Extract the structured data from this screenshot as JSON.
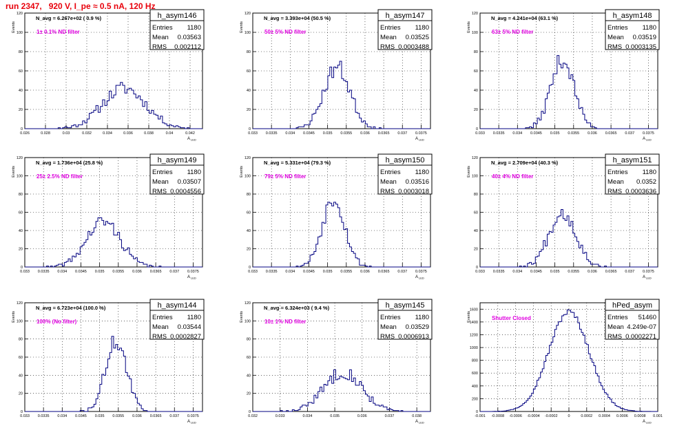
{
  "page_title": "run 2347,   920 V, I_pe ≈ 0.5 nA, 120 Hz",
  "colors": {
    "title": "#e8000b",
    "note": "#e000e0",
    "hist": "#000080",
    "frame": "#000000"
  },
  "axis_labels": {
    "y": "Events",
    "x_main": "A",
    "x_sub": "LED"
  },
  "stats_labels": {
    "entries": "Entries",
    "mean": "Mean",
    "rms": "RMS"
  },
  "chart_data": [
    {
      "type": "bar",
      "name": "h_asym146",
      "navg": "N_avg = 6.267e+02 ( 0.9 %)",
      "note": "1± 0.1% ND filter",
      "entries": "1180",
      "mean": "0.03563",
      "rms": "0.002112",
      "xlim": [
        0.026,
        0.0432
      ],
      "ylim": [
        0,
        120
      ],
      "xticks": [
        "0.026",
        "0.028",
        "0.03",
        "0.032",
        "0.034",
        "0.036",
        "0.038",
        "0.04",
        "0.042"
      ],
      "yticks": [
        "0",
        "20",
        "40",
        "60",
        "80",
        "100",
        "120"
      ],
      "center": 0.0356,
      "sigma": 0.0021,
      "peak": 42,
      "nbins": 80,
      "seed": 11
    },
    {
      "type": "bar",
      "name": "h_asym147",
      "navg": "N_avg = 3.393e+04 (50.5 %)",
      "note": "50± 5% ND filter",
      "entries": "1180",
      "mean": "0.03525",
      "rms": "0.0003488",
      "xlim": [
        0.033,
        0.03775
      ],
      "ylim": [
        0,
        120
      ],
      "xticks": [
        "0.033",
        "0.0335",
        "0.034",
        "0.0345",
        "0.035",
        "0.0355",
        "0.036",
        "0.0365",
        "0.037",
        "0.0375"
      ],
      "yticks": [
        "0",
        "20",
        "40",
        "60",
        "80",
        "100",
        "120"
      ],
      "center": 0.03525,
      "sigma": 0.00035,
      "peak": 64,
      "nbins": 90,
      "seed": 23
    },
    {
      "type": "bar",
      "name": "h_asym148",
      "navg": "N_avg = 4.241e+04 (63.1 %)",
      "note": "63± 5% ND filter",
      "entries": "1180",
      "mean": "0.03519",
      "rms": "0.0003135",
      "xlim": [
        0.033,
        0.03775
      ],
      "ylim": [
        0,
        120
      ],
      "xticks": [
        "0.033",
        "0.0335",
        "0.034",
        "0.0345",
        "0.035",
        "0.0355",
        "0.036",
        "0.0365",
        "0.037",
        "0.0375"
      ],
      "yticks": [
        "0",
        "20",
        "40",
        "60",
        "80",
        "100",
        "120"
      ],
      "center": 0.0352,
      "sigma": 0.00031,
      "peak": 72,
      "nbins": 90,
      "seed": 37
    },
    {
      "type": "bar",
      "name": "h_asym149",
      "navg": "N_avg = 1.736e+04 (25.8 %)",
      "note": "25± 2.5% ND filter",
      "entries": "1180",
      "mean": "0.03507",
      "rms": "0.0004556",
      "xlim": [
        0.033,
        0.03775
      ],
      "ylim": [
        0,
        120
      ],
      "xticks": [
        "0.033",
        "0.0335",
        "0.034",
        "0.0345",
        "0.035",
        "0.0355",
        "0.036",
        "0.0365",
        "0.037",
        "0.0375"
      ],
      "yticks": [
        "0",
        "20",
        "40",
        "60",
        "80",
        "100",
        "120"
      ],
      "center": 0.0351,
      "sigma": 0.00045,
      "peak": 50,
      "nbins": 90,
      "seed": 41
    },
    {
      "type": "bar",
      "name": "h_asym150",
      "navg": "N_avg = 5.331e+04 (79.3 %)",
      "note": "79± 5% ND filter",
      "entries": "1180",
      "mean": "0.03516",
      "rms": "0.0003018",
      "xlim": [
        0.033,
        0.03775
      ],
      "ylim": [
        0,
        120
      ],
      "xticks": [
        "0.033",
        "0.0335",
        "0.034",
        "0.0345",
        "0.035",
        "0.0355",
        "0.036",
        "0.0365",
        "0.037",
        "0.0375"
      ],
      "yticks": [
        "0",
        "20",
        "40",
        "60",
        "80",
        "100",
        "120"
      ],
      "center": 0.03516,
      "sigma": 0.0003,
      "peak": 76,
      "nbins": 90,
      "seed": 53
    },
    {
      "type": "bar",
      "name": "h_asym151",
      "navg": "N_avg = 2.709e+04 (40.3 %)",
      "note": "40± 4% ND filter",
      "entries": "1180",
      "mean": "0.0352",
      "rms": "0.0003636",
      "xlim": [
        0.033,
        0.03775
      ],
      "ylim": [
        0,
        120
      ],
      "xticks": [
        "0.033",
        "0.0335",
        "0.034",
        "0.0345",
        "0.035",
        "0.0355",
        "0.036",
        "0.0365",
        "0.037",
        "0.0375"
      ],
      "yticks": [
        "0",
        "20",
        "40",
        "60",
        "80",
        "100",
        "120"
      ],
      "center": 0.0352,
      "sigma": 0.00036,
      "peak": 60,
      "nbins": 90,
      "seed": 67
    },
    {
      "type": "bar",
      "name": "h_asym144",
      "navg": "N_avg = 6.723e+04 (100.0 %)",
      "note": "100% (No filter)",
      "entries": "1180",
      "mean": "0.03544",
      "rms": "0.0002827",
      "xlim": [
        0.033,
        0.03775
      ],
      "ylim": [
        0,
        120
      ],
      "xticks": [
        "0.033",
        "0.0335",
        "0.034",
        "0.0345",
        "0.035",
        "0.0355",
        "0.036",
        "0.0365",
        "0.037",
        "0.0375"
      ],
      "yticks": [
        "0",
        "20",
        "40",
        "60",
        "80",
        "100",
        "120"
      ],
      "center": 0.03544,
      "sigma": 0.00028,
      "peak": 78,
      "nbins": 90,
      "seed": 71
    },
    {
      "type": "bar",
      "name": "h_asym145",
      "navg": "N_avg = 6.324e+03 ( 9.4 %)",
      "note": "10± 1% ND filter",
      "entries": "1180",
      "mean": "0.03529",
      "rms": "0.0006913",
      "xlim": [
        0.032,
        0.0385
      ],
      "ylim": [
        0,
        120
      ],
      "xticks": [
        "0.032",
        "0.033",
        "0.034",
        "0.035",
        "0.036",
        "0.037",
        "0.038"
      ],
      "yticks": [
        "0",
        "20",
        "40",
        "60",
        "80",
        "100",
        "120"
      ],
      "center": 0.0353,
      "sigma": 0.00069,
      "peak": 44,
      "nbins": 90,
      "seed": 83
    },
    {
      "type": "bar",
      "name": "hPed_asym",
      "navg": "",
      "note": "Shutter Closed",
      "entries": "51460",
      "mean": "4.249e-07",
      "rms": "0.0002271",
      "xlim": [
        -0.001,
        0.001
      ],
      "ylim": [
        0,
        1700
      ],
      "xticks": [
        "-0.001",
        "-0.0008",
        "-0.0006",
        "-0.0004",
        "-0.0002",
        "0",
        "0.0002",
        "0.0004",
        "0.0006",
        "0.0008",
        "0.001"
      ],
      "yticks": [
        "0",
        "200",
        "400",
        "600",
        "800",
        "1000",
        "1200",
        "1400",
        "1600"
      ],
      "center": 0.0,
      "sigma": 0.000227,
      "peak": 1560,
      "nbins": 100,
      "seed": 97
    }
  ]
}
